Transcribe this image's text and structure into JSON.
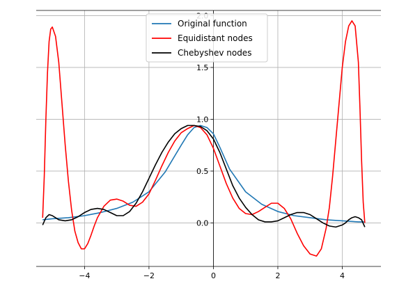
{
  "chart_data": {
    "type": "line",
    "title": "",
    "xlabel": "",
    "ylabel": "",
    "xlim": [
      -5.5,
      5.2
    ],
    "ylim": [
      -0.42,
      2.05
    ],
    "grid": true,
    "legend_position": "top-center",
    "x_ticks": [
      {
        "value": -4,
        "label": "−4"
      },
      {
        "value": -2,
        "label": "−2"
      },
      {
        "value": 0,
        "label": "0"
      },
      {
        "value": 2,
        "label": "2"
      },
      {
        "value": 4,
        "label": "4"
      }
    ],
    "y_ticks": [
      {
        "value": 0.0,
        "label": "0.0"
      },
      {
        "value": 0.5,
        "label": "0.5"
      },
      {
        "value": 1.0,
        "label": "1.0"
      },
      {
        "value": 1.5,
        "label": "1.5"
      },
      {
        "value": 2.0,
        "label": "2.0"
      }
    ],
    "series": [
      {
        "name": "Original function",
        "color": "#1f77b4",
        "x": [
          -5.3,
          -5.0,
          -4.5,
          -4.0,
          -3.5,
          -3.0,
          -2.5,
          -2.0,
          -1.5,
          -1.0,
          -0.8,
          -0.6,
          -0.4,
          -0.2,
          0.0,
          0.2,
          0.5,
          1.0,
          1.5,
          2.0,
          2.5,
          3.0,
          3.5,
          4.0,
          4.5,
          4.7
        ],
        "y": [
          0.03,
          0.04,
          0.05,
          0.07,
          0.1,
          0.14,
          0.2,
          0.3,
          0.49,
          0.75,
          0.85,
          0.92,
          0.94,
          0.92,
          0.86,
          0.73,
          0.52,
          0.3,
          0.18,
          0.11,
          0.07,
          0.05,
          0.03,
          0.02,
          0.01,
          0.01
        ]
      },
      {
        "name": "Equidistant nodes",
        "color": "#ff0000",
        "x": [
          -5.3,
          -5.25,
          -5.2,
          -5.15,
          -5.1,
          -5.05,
          -5.0,
          -4.9,
          -4.8,
          -4.7,
          -4.6,
          -4.5,
          -4.4,
          -4.3,
          -4.2,
          -4.1,
          -4.0,
          -3.9,
          -3.8,
          -3.7,
          -3.6,
          -3.4,
          -3.2,
          -3.0,
          -2.8,
          -2.6,
          -2.4,
          -2.2,
          -2.0,
          -1.8,
          -1.6,
          -1.4,
          -1.2,
          -1.0,
          -0.8,
          -0.6,
          -0.4,
          -0.2,
          0.0,
          0.2,
          0.4,
          0.6,
          0.8,
          1.0,
          1.2,
          1.4,
          1.6,
          1.8,
          2.0,
          2.2,
          2.4,
          2.6,
          2.8,
          3.0,
          3.2,
          3.35,
          3.5,
          3.6,
          3.7,
          3.8,
          3.9,
          4.0,
          4.1,
          4.2,
          4.3,
          4.4,
          4.5,
          4.55,
          4.6,
          4.65,
          4.7
        ],
        "y": [
          0.05,
          0.45,
          1.0,
          1.45,
          1.75,
          1.87,
          1.89,
          1.8,
          1.55,
          1.15,
          0.75,
          0.4,
          0.12,
          -0.08,
          -0.19,
          -0.25,
          -0.25,
          -0.2,
          -0.12,
          -0.03,
          0.05,
          0.16,
          0.22,
          0.23,
          0.21,
          0.17,
          0.16,
          0.2,
          0.28,
          0.41,
          0.55,
          0.68,
          0.79,
          0.87,
          0.91,
          0.94,
          0.92,
          0.85,
          0.72,
          0.55,
          0.38,
          0.24,
          0.14,
          0.09,
          0.08,
          0.11,
          0.15,
          0.19,
          0.19,
          0.14,
          0.04,
          -0.1,
          -0.22,
          -0.3,
          -0.32,
          -0.25,
          -0.05,
          0.15,
          0.45,
          0.8,
          1.15,
          1.5,
          1.75,
          1.9,
          1.95,
          1.9,
          1.55,
          1.1,
          0.6,
          0.2,
          0.0
        ]
      },
      {
        "name": "Chebyshev nodes",
        "color": "#000000",
        "x": [
          -5.3,
          -5.2,
          -5.1,
          -5.0,
          -4.9,
          -4.8,
          -4.6,
          -4.4,
          -4.2,
          -4.0,
          -3.8,
          -3.6,
          -3.4,
          -3.2,
          -3.0,
          -2.8,
          -2.6,
          -2.4,
          -2.2,
          -2.0,
          -1.8,
          -1.6,
          -1.4,
          -1.2,
          -1.0,
          -0.8,
          -0.6,
          -0.4,
          -0.2,
          0.0,
          0.2,
          0.4,
          0.6,
          0.8,
          1.0,
          1.2,
          1.4,
          1.6,
          1.8,
          2.0,
          2.2,
          2.4,
          2.6,
          2.8,
          3.0,
          3.2,
          3.4,
          3.6,
          3.8,
          4.0,
          4.1,
          4.2,
          4.3,
          4.4,
          4.5,
          4.6,
          4.7
        ],
        "y": [
          -0.02,
          0.05,
          0.08,
          0.07,
          0.05,
          0.03,
          0.02,
          0.03,
          0.06,
          0.1,
          0.13,
          0.14,
          0.13,
          0.1,
          0.07,
          0.07,
          0.11,
          0.19,
          0.3,
          0.43,
          0.56,
          0.68,
          0.78,
          0.86,
          0.91,
          0.94,
          0.94,
          0.93,
          0.89,
          0.81,
          0.68,
          0.52,
          0.36,
          0.24,
          0.15,
          0.08,
          0.03,
          0.01,
          0.01,
          0.02,
          0.05,
          0.08,
          0.1,
          0.1,
          0.08,
          0.04,
          0.0,
          -0.03,
          -0.04,
          -0.02,
          0.0,
          0.03,
          0.05,
          0.06,
          0.05,
          0.03,
          -0.04
        ]
      }
    ]
  }
}
